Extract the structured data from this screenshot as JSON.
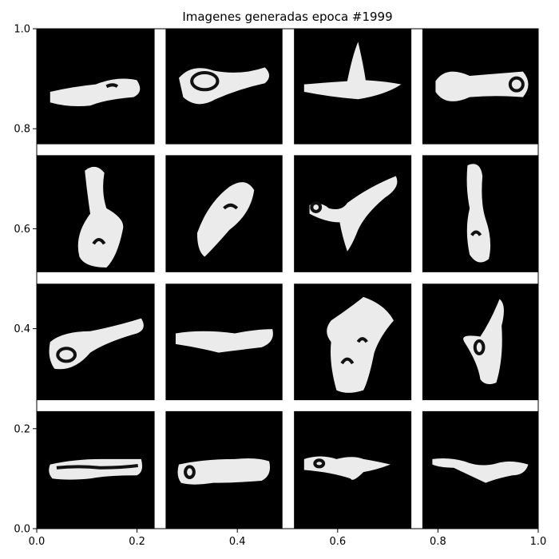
{
  "chart_data": {
    "type": "image-grid",
    "title": "Imagenes generadas epoca #1999",
    "xlim": [
      0,
      1
    ],
    "ylim": [
      0,
      1
    ],
    "x_ticks": [
      "0.0",
      "0.2",
      "0.4",
      "0.6",
      "0.8",
      "1.0"
    ],
    "y_ticks": [
      "0.0",
      "0.2",
      "0.4",
      "0.6",
      "0.8",
      "1.0"
    ],
    "grid": {
      "rows": 4,
      "cols": 4
    },
    "images": [
      {
        "row": 0,
        "col": 0,
        "x": [
          0.0,
          0.235
        ],
        "y": [
          0.769,
          1.0
        ]
      },
      {
        "row": 0,
        "col": 1,
        "x": [
          0.257,
          0.49
        ],
        "y": [
          0.769,
          1.0
        ]
      },
      {
        "row": 0,
        "col": 2,
        "x": [
          0.513,
          0.747
        ],
        "y": [
          0.769,
          1.0
        ]
      },
      {
        "row": 0,
        "col": 3,
        "x": [
          0.769,
          1.0
        ],
        "y": [
          0.769,
          1.0
        ]
      },
      {
        "row": 1,
        "col": 0,
        "x": [
          0.0,
          0.235
        ],
        "y": [
          0.513,
          0.747
        ]
      },
      {
        "row": 1,
        "col": 1,
        "x": [
          0.257,
          0.49
        ],
        "y": [
          0.513,
          0.747
        ]
      },
      {
        "row": 1,
        "col": 2,
        "x": [
          0.513,
          0.747
        ],
        "y": [
          0.513,
          0.747
        ]
      },
      {
        "row": 1,
        "col": 3,
        "x": [
          0.769,
          1.0
        ],
        "y": [
          0.513,
          0.747
        ]
      },
      {
        "row": 2,
        "col": 0,
        "x": [
          0.0,
          0.235
        ],
        "y": [
          0.257,
          0.49
        ]
      },
      {
        "row": 2,
        "col": 1,
        "x": [
          0.257,
          0.49
        ],
        "y": [
          0.257,
          0.49
        ]
      },
      {
        "row": 2,
        "col": 2,
        "x": [
          0.513,
          0.747
        ],
        "y": [
          0.257,
          0.49
        ]
      },
      {
        "row": 2,
        "col": 3,
        "x": [
          0.769,
          1.0
        ],
        "y": [
          0.257,
          0.49
        ]
      },
      {
        "row": 3,
        "col": 0,
        "x": [
          0.0,
          0.235
        ],
        "y": [
          0.0,
          0.235
        ]
      },
      {
        "row": 3,
        "col": 1,
        "x": [
          0.257,
          0.49
        ],
        "y": [
          0.0,
          0.235
        ]
      },
      {
        "row": 3,
        "col": 2,
        "x": [
          0.513,
          0.747
        ],
        "y": [
          0.0,
          0.235
        ]
      },
      {
        "row": 3,
        "col": 3,
        "x": [
          0.769,
          1.0
        ],
        "y": [
          0.0,
          0.235
        ]
      }
    ],
    "colors": {
      "image_background": "#000000",
      "shape": "#ffffff",
      "figure_background": "#ffffff"
    }
  }
}
